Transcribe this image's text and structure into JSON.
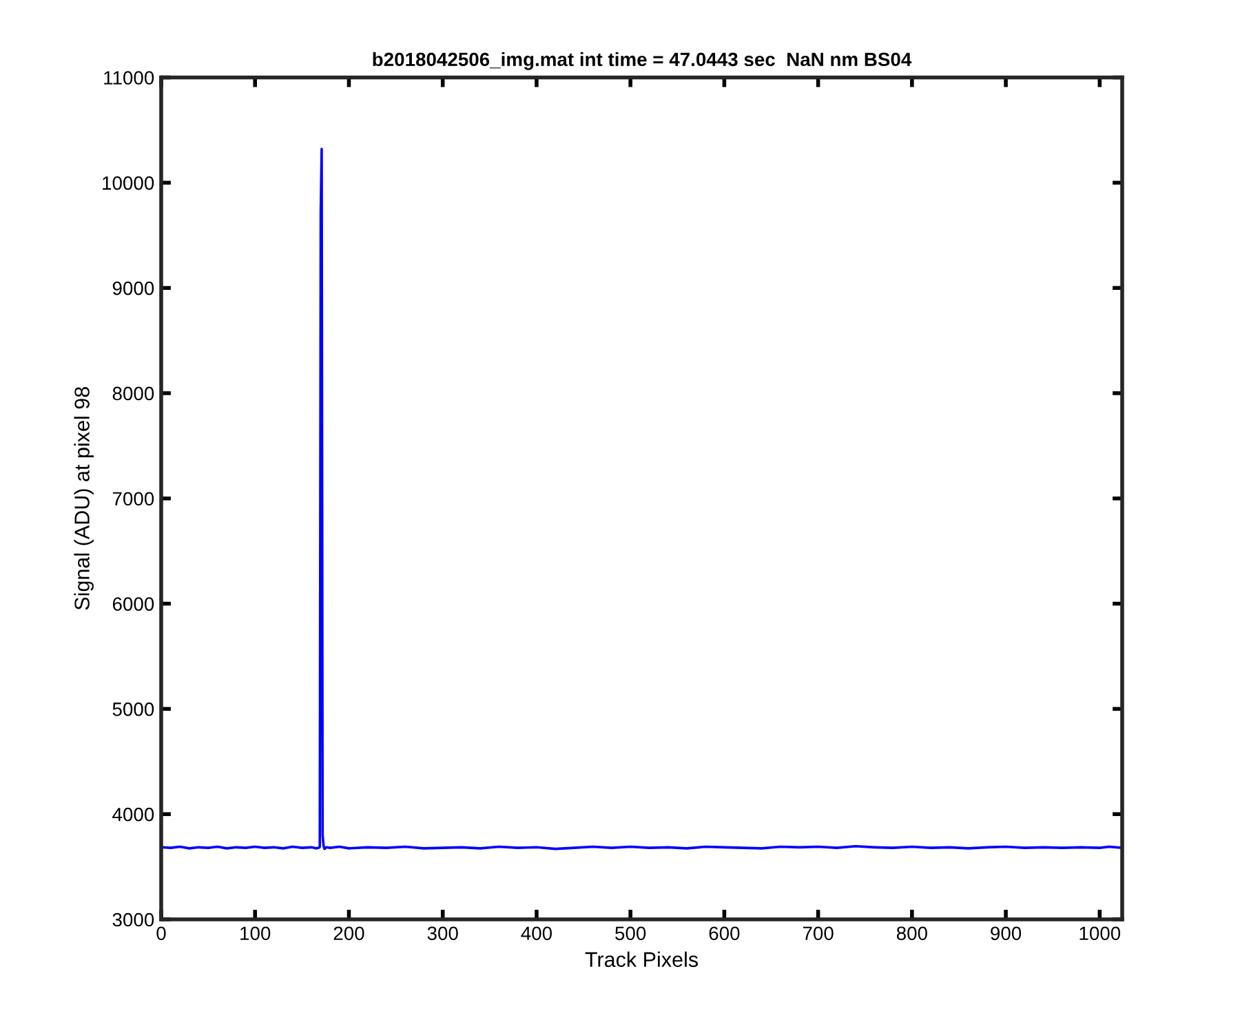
{
  "chart_data": {
    "type": "line",
    "title": "b2018042506_img.mat int time = 47.0443 sec  NaN nm BS04",
    "xlabel": "Track Pixels",
    "ylabel": "Signal (ADU) at pixel 98",
    "xlim": [
      0,
      1024
    ],
    "xticks": [
      0,
      100,
      200,
      300,
      400,
      500,
      600,
      700,
      800,
      900,
      1000
    ],
    "ylim": [
      3000,
      11000
    ],
    "yticks": [
      3000,
      4000,
      5000,
      6000,
      7000,
      8000,
      9000,
      10000,
      11000
    ],
    "grid": false,
    "legend": false,
    "marker": "none",
    "line_style": "solid",
    "series": [
      {
        "color": "#0000ff",
        "x": [
          1,
          10,
          20,
          30,
          40,
          50,
          60,
          70,
          80,
          90,
          100,
          110,
          120,
          130,
          140,
          150,
          160,
          165,
          168,
          169,
          170,
          171,
          172,
          173,
          174,
          176,
          180,
          190,
          200,
          220,
          240,
          260,
          280,
          300,
          320,
          340,
          360,
          380,
          400,
          420,
          440,
          460,
          480,
          500,
          520,
          540,
          560,
          580,
          600,
          620,
          640,
          660,
          680,
          700,
          720,
          740,
          760,
          780,
          800,
          820,
          840,
          860,
          880,
          900,
          920,
          940,
          960,
          980,
          1000,
          1010,
          1024
        ],
        "values": [
          3685,
          3680,
          3690,
          3675,
          3685,
          3680,
          3690,
          3675,
          3685,
          3680,
          3690,
          3680,
          3685,
          3675,
          3690,
          3680,
          3685,
          3675,
          3680,
          3690,
          9720,
          10320,
          3800,
          3700,
          3670,
          3685,
          3680,
          3690,
          3675,
          3685,
          3680,
          3690,
          3675,
          3680,
          3685,
          3675,
          3690,
          3680,
          3685,
          3670,
          3680,
          3690,
          3680,
          3690,
          3680,
          3685,
          3675,
          3690,
          3685,
          3680,
          3675,
          3690,
          3685,
          3690,
          3680,
          3695,
          3685,
          3680,
          3690,
          3680,
          3685,
          3675,
          3685,
          3690,
          3680,
          3685,
          3680,
          3685,
          3680,
          3690,
          3680
        ]
      }
    ]
  }
}
